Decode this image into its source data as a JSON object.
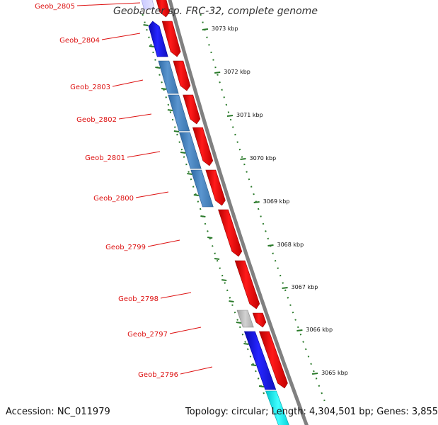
{
  "title": "Geobacter sp. FRC-32, complete genome",
  "footer": {
    "accession": "Accession: NC_011979",
    "topology": "Topology: circular; Length: 4,304,501 bp; Genes: 3,855"
  },
  "gene_labels": [
    "Geob_2805",
    "Geob_2804",
    "Geob_2803",
    "Geob_2802",
    "Geob_2801",
    "Geob_2800",
    "Geob_2799",
    "Geob_2798",
    "Geob_2797",
    "Geob_2796"
  ],
  "kbp_labels": [
    "3073 kbp",
    "3072 kbp",
    "3071 kbp",
    "3070 kbp",
    "3069 kbp",
    "3068 kbp",
    "3067 kbp",
    "3066 kbp",
    "3065 kbp"
  ],
  "colors": {
    "forward_gene": "#ff0000",
    "reverse_gene_dark": "#1a1aee",
    "reverse_gene_steel": "#4a85c0",
    "reverse_gene_cyan": "#00e5ee",
    "gray_gene": "#b4b4b4",
    "backbone": "#808080",
    "ruler": "#2a7a2a",
    "label": "#dd1111"
  }
}
